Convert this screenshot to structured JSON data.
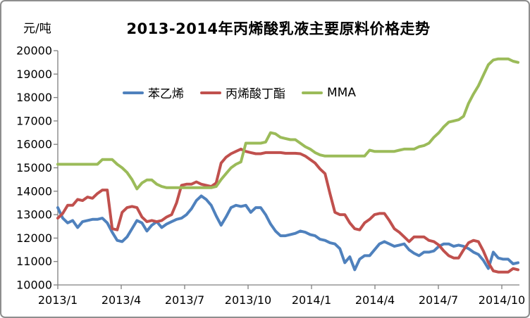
{
  "chart": {
    "title": "2013-2014年丙烯酸乳液主要原料价格走势",
    "unit_label": "元/吨"
  },
  "chart_data": {
    "type": "line",
    "title": "2013-2014年丙烯酸乳液主要原料价格走势",
    "ylabel": "元/吨",
    "xlabel": "",
    "ylim": [
      10000,
      20000
    ],
    "y_tick_step": 1000,
    "y_tick_labels": [
      "20000",
      "19000",
      "18000",
      "17000",
      "16000",
      "15000",
      "14000",
      "13000",
      "12000",
      "11000",
      "10000"
    ],
    "x_tick_labels": [
      "2013/1",
      "2013/4",
      "2013/7",
      "2013/10",
      "2014/1",
      "2014/4",
      "2014/7",
      "2014/10"
    ],
    "x_range": "2013/1 to 2014/10 (approx. weekly points)",
    "grid": false,
    "legend_position": "top-inside",
    "axis_color": "#808080",
    "series": [
      {
        "name": "苯乙烯",
        "color": "#4F81BD",
        "values": [
          13300,
          12850,
          12650,
          12750,
          12450,
          12700,
          12750,
          12800,
          12800,
          12850,
          12650,
          12250,
          11900,
          11850,
          12050,
          12400,
          12750,
          12650,
          12300,
          12550,
          12700,
          12450,
          12600,
          12700,
          12800,
          12850,
          13000,
          13250,
          13600,
          13800,
          13650,
          13400,
          12950,
          12550,
          12900,
          13300,
          13400,
          13350,
          13400,
          13100,
          13300,
          13300,
          13000,
          12600,
          12300,
          12100,
          12100,
          12150,
          12200,
          12300,
          12250,
          12150,
          12100,
          11950,
          11900,
          11800,
          11750,
          11550,
          10950,
          11200,
          10650,
          11100,
          11250,
          11250,
          11500,
          11750,
          11850,
          11750,
          11650,
          11700,
          11750,
          11500,
          11350,
          11250,
          11400,
          11400,
          11450,
          11650,
          11750,
          11750,
          11650,
          11700,
          11650,
          11550,
          11400,
          11300,
          11050,
          10700,
          11400,
          11150,
          11100,
          11100,
          10900,
          10950
        ]
      },
      {
        "name": "丙烯酸丁酯",
        "color": "#C0504D",
        "values": [
          12850,
          13050,
          13400,
          13400,
          13650,
          13600,
          13750,
          13700,
          13900,
          14050,
          14050,
          12400,
          12350,
          13100,
          13300,
          13350,
          13300,
          12900,
          12700,
          12750,
          12700,
          12750,
          12900,
          13000,
          13500,
          14250,
          14300,
          14300,
          14400,
          14300,
          14250,
          14200,
          14350,
          15200,
          15450,
          15600,
          15700,
          15800,
          15700,
          15650,
          15600,
          15600,
          15650,
          15650,
          15650,
          15650,
          15620,
          15620,
          15620,
          15600,
          15500,
          15350,
          15200,
          14950,
          14750,
          13900,
          13100,
          13000,
          13000,
          12650,
          12400,
          12350,
          12650,
          12800,
          13000,
          13050,
          13050,
          12750,
          12400,
          12250,
          12050,
          11850,
          12050,
          12050,
          12050,
          11900,
          11850,
          11700,
          11450,
          11250,
          11150,
          11150,
          11500,
          11800,
          11900,
          11850,
          11450,
          10950,
          10600,
          10550,
          10550,
          10550,
          10700,
          10650
        ]
      },
      {
        "name": "MMA",
        "color": "#9BBB59",
        "values": [
          15150,
          15150,
          15150,
          15150,
          15150,
          15150,
          15150,
          15150,
          15150,
          15350,
          15350,
          15350,
          15150,
          15000,
          14800,
          14500,
          14100,
          14350,
          14480,
          14480,
          14300,
          14200,
          14150,
          14150,
          14150,
          14150,
          14150,
          14150,
          14150,
          14150,
          14150,
          14150,
          14200,
          14500,
          14750,
          15000,
          15150,
          15250,
          16050,
          16050,
          16050,
          16050,
          16100,
          16500,
          16450,
          16300,
          16250,
          16200,
          16200,
          16050,
          15900,
          15800,
          15650,
          15550,
          15500,
          15500,
          15500,
          15500,
          15500,
          15500,
          15500,
          15500,
          15500,
          15750,
          15700,
          15700,
          15700,
          15700,
          15700,
          15750,
          15800,
          15800,
          15800,
          15900,
          15950,
          16050,
          16300,
          16500,
          16750,
          16950,
          17000,
          17050,
          17200,
          17750,
          18150,
          18500,
          18950,
          19400,
          19600,
          19650,
          19650,
          19650,
          19550,
          19500
        ]
      }
    ]
  }
}
